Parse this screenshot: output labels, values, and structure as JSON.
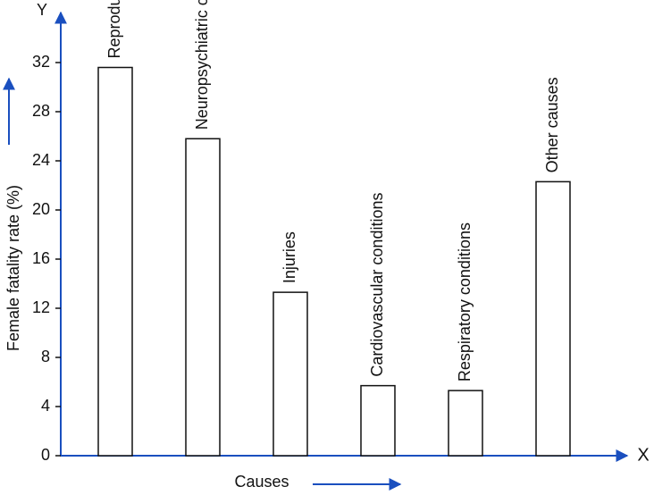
{
  "chart_data": {
    "type": "bar",
    "y_axis_label": "Female fatality rate (%)",
    "x_axis_label": "Causes",
    "y_axis_letter": "Y",
    "x_axis_letter": "X",
    "categories": [
      "Reproductive health conditions",
      "Neuropsychiatric conditions",
      "Injuries",
      "Cardiovascular conditions",
      "Respiratory conditions",
      "Other causes"
    ],
    "values": [
      31.6,
      25.8,
      13.3,
      5.7,
      5.3,
      22.3
    ],
    "color": "#ffffff",
    "ylim": [
      0,
      36
    ],
    "yticks": [
      0,
      4,
      8,
      12,
      16,
      20,
      24,
      28,
      32
    ],
    "grid": false
  }
}
